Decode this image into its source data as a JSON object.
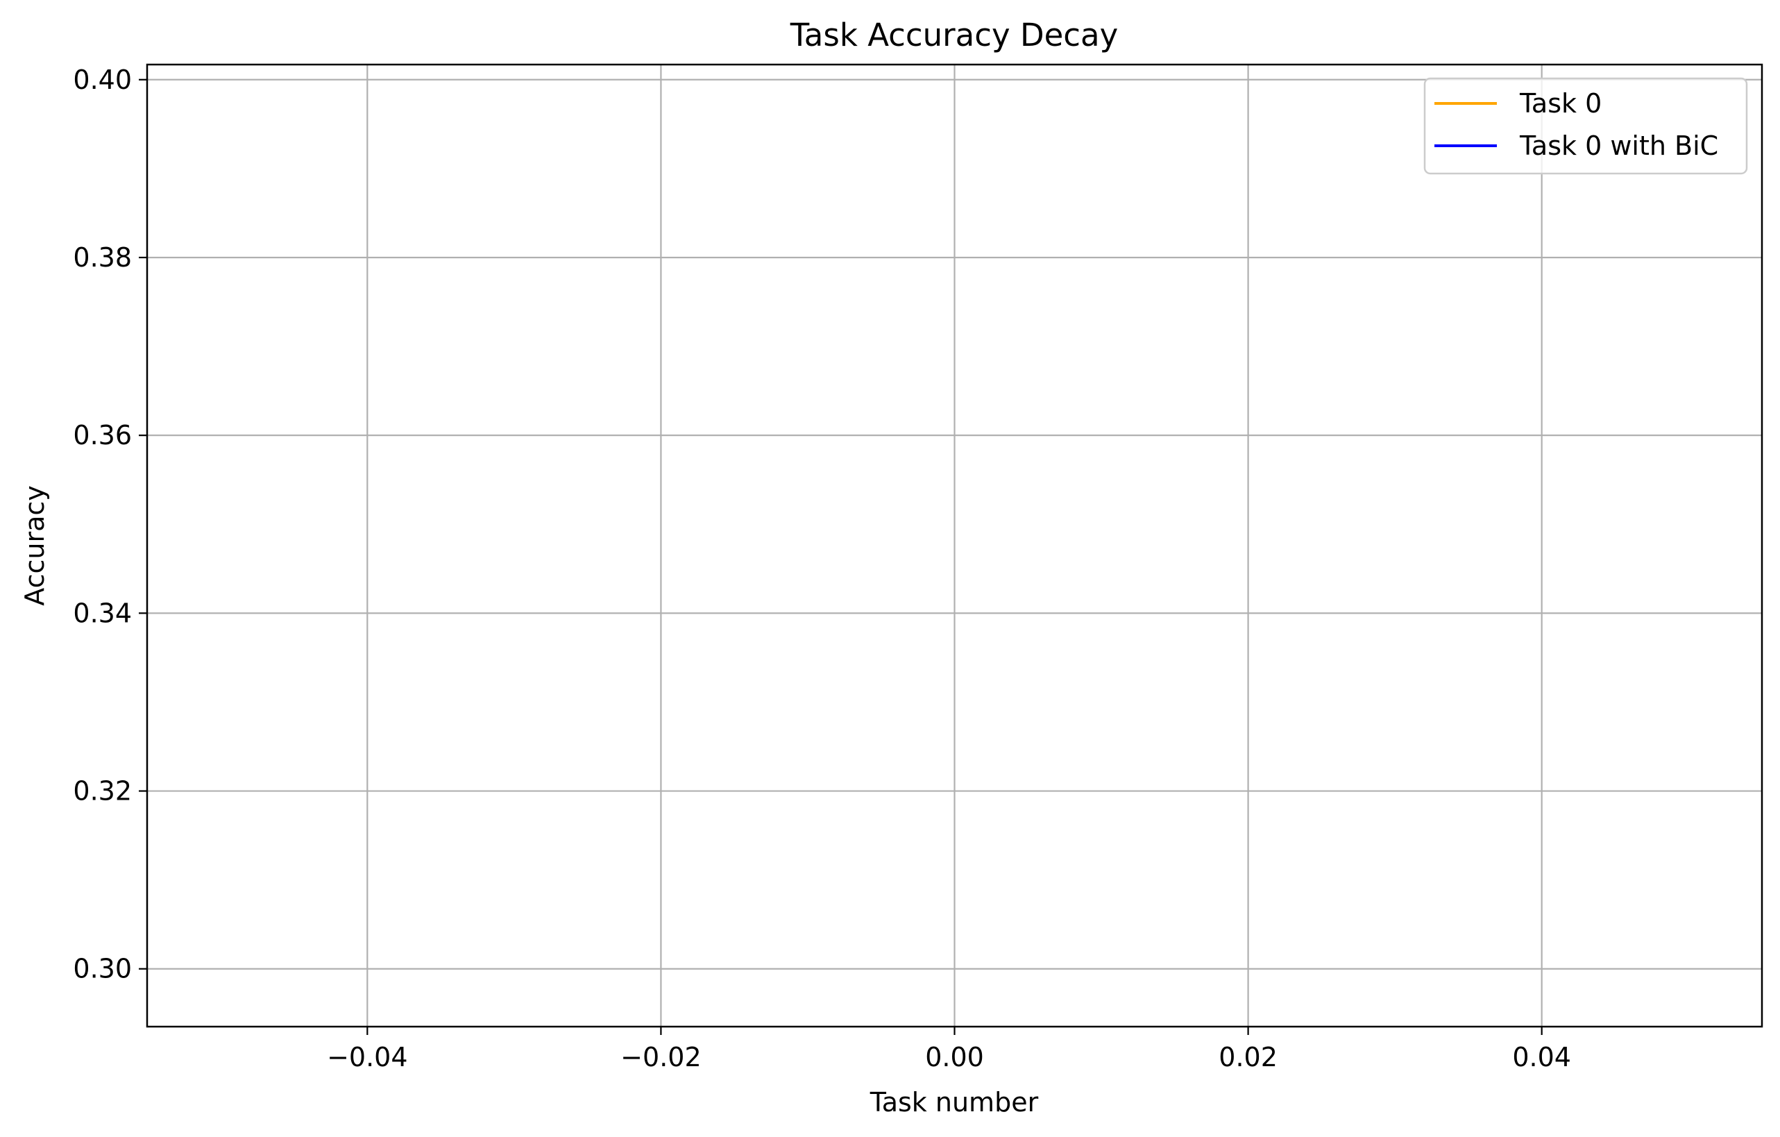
{
  "chart_data": {
    "type": "line",
    "title": "Task Accuracy Decay",
    "xlabel": "Task number",
    "ylabel": "Accuracy",
    "xlim": [
      -0.055,
      0.055
    ],
    "ylim": [
      0.2935,
      0.4017
    ],
    "x_ticks": [
      -0.04,
      -0.02,
      0.0,
      0.02,
      0.04
    ],
    "x_tick_labels": [
      "−0.04",
      "−0.02",
      "0.00",
      "0.02",
      "0.04"
    ],
    "y_ticks": [
      0.3,
      0.32,
      0.34,
      0.36,
      0.38,
      0.4
    ],
    "y_tick_labels": [
      "0.30",
      "0.32",
      "0.34",
      "0.36",
      "0.38",
      "0.40"
    ],
    "grid": true,
    "legend_position": "top-right",
    "series": [
      {
        "name": "Task 0",
        "color": "#ffa500",
        "x": [],
        "y": []
      },
      {
        "name": "Task 0 with BiC",
        "color": "#0000ff",
        "x": [],
        "y": []
      }
    ]
  }
}
